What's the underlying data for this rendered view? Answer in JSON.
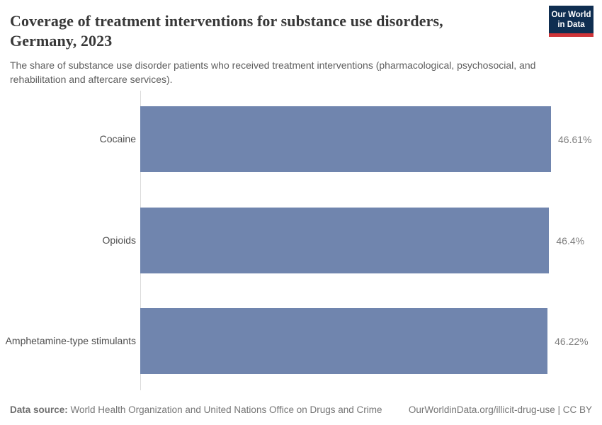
{
  "header": {
    "title_line1": "Coverage of treatment interventions for substance use disorders,",
    "title_line2": "Germany, 2023",
    "subtitle": "The share of substance use disorder patients who received treatment interventions (pharmacological, psychosocial, and rehabilitation and aftercare services)."
  },
  "logo": {
    "line1": "Our World",
    "line2": "in Data",
    "bg_color": "#0f2e51",
    "accent_color": "#cf3438"
  },
  "chart_data": {
    "type": "bar",
    "orientation": "horizontal",
    "title": "Coverage of treatment interventions for substance use disorders, Germany, 2023",
    "categories": [
      "Cocaine",
      "Opioids",
      "Amphetamine-type stimulants"
    ],
    "values": [
      46.61,
      46.4,
      46.22
    ],
    "value_labels": [
      "46.61%",
      "46.4%",
      "46.22%"
    ],
    "unit": "%",
    "xlabel": "",
    "ylabel": "",
    "xlim": [
      0,
      46.61
    ],
    "grid": false,
    "legend": false,
    "bar_color": "#7085ae",
    "axis_color": "#dcdcdc"
  },
  "footer": {
    "datasource_label": "Data source:",
    "datasource_text": "World Health Organization and United Nations Office on Drugs and Crime",
    "link_text": "OurWorldinData.org/illicit-drug-use | CC BY"
  }
}
